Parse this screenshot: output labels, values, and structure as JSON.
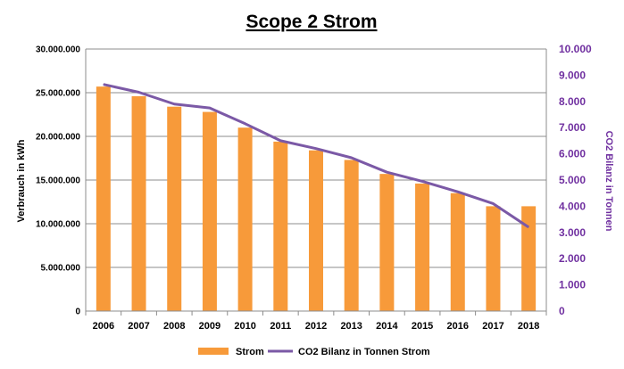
{
  "chart_data": {
    "type": "bar",
    "title": "Scope 2 Strom",
    "categories": [
      "2006",
      "2007",
      "2008",
      "2009",
      "2010",
      "2011",
      "2012",
      "2013",
      "2014",
      "2015",
      "2016",
      "2017",
      "2018"
    ],
    "ylabel": "Verbrauch in kWh",
    "y2label": "CO2 Bilanz in Tonnen",
    "ylim": [
      0,
      30000000
    ],
    "y2lim": [
      0,
      10000
    ],
    "yticks": [
      "0",
      "5.000.000",
      "10.000.000",
      "15.000.000",
      "20.000.000",
      "25.000.000",
      "30.000.000"
    ],
    "y2ticks": [
      "0",
      "1.000",
      "2.000",
      "3.000",
      "4.000",
      "5.000",
      "6.000",
      "7.000",
      "8.000",
      "9.000",
      "10.000"
    ],
    "grid": true,
    "legend_position": "bottom",
    "series": [
      {
        "name": "Strom",
        "type": "bar",
        "axis": "left",
        "color": "#F79A3A",
        "values": [
          25700000,
          24600000,
          23400000,
          22800000,
          21000000,
          19400000,
          18400000,
          17300000,
          15700000,
          14600000,
          13500000,
          12000000,
          12000000
        ]
      },
      {
        "name": "CO2 Bilanz in Tonnen Strom",
        "type": "line",
        "axis": "right",
        "color": "#7B59A6",
        "values": [
          8650,
          8350,
          7900,
          7750,
          7150,
          6500,
          6200,
          5850,
          5300,
          4950,
          4550,
          4100,
          3200
        ]
      }
    ],
    "right_axis_color": "#7030A0"
  }
}
